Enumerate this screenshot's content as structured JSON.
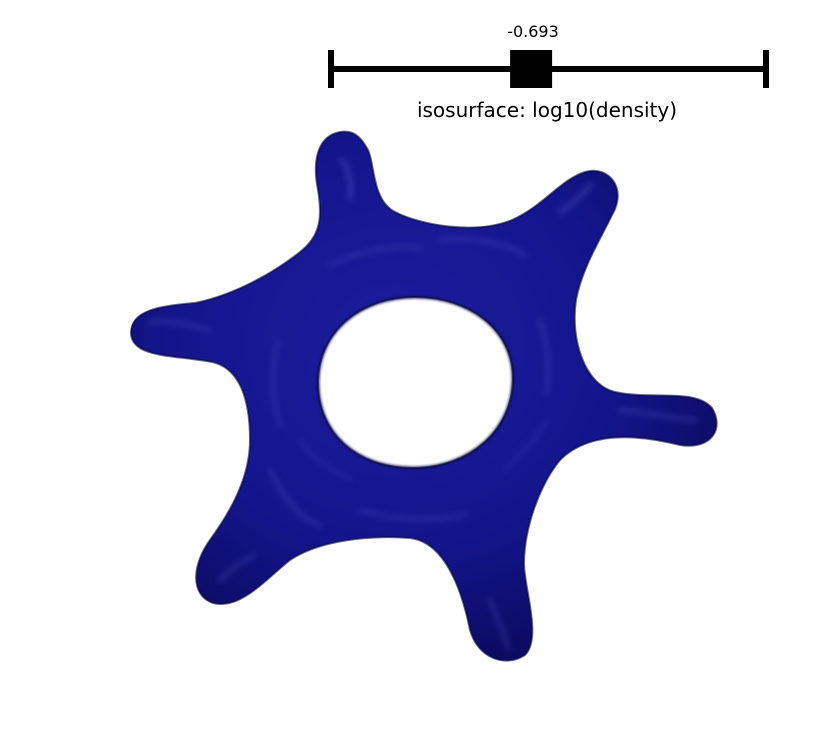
{
  "slider": {
    "value_label": "-0.693",
    "title": "isosurface: log10(density)",
    "value_fraction": 0.46,
    "color": "#000000"
  },
  "isosurface": {
    "shape": "six-armed ring",
    "color": "#14148a",
    "highlight_color": "#6a6ad8"
  },
  "background": "#ffffff"
}
